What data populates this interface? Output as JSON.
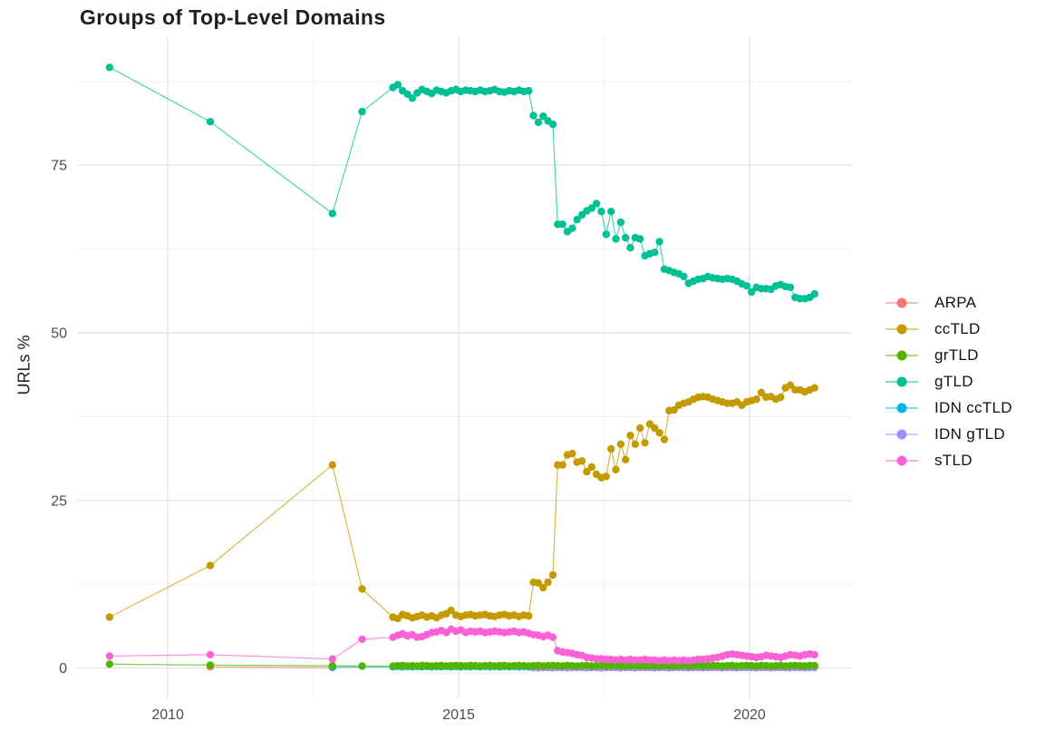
{
  "page": {
    "background": "#ffffff"
  },
  "styles": {
    "grid_major_color": "#e2e2e2",
    "grid_minor_color": "#f0f0f0",
    "axis_text_color": "#4d4d4d",
    "title_color": "#1f1f1f",
    "legend_text_color": "#111111"
  },
  "chart_data": {
    "type": "line",
    "title": "Groups of Top-Level Domains",
    "xlabel": "",
    "ylabel": "URLs %",
    "legend_position": "right",
    "grid": true,
    "xlim": [
      2008.44,
      2021.76
    ],
    "ylim": [
      -4.5,
      94.1
    ],
    "x_ticks": [
      [
        2010,
        "2010"
      ],
      [
        2015,
        "2015"
      ],
      [
        2020,
        "2020"
      ]
    ],
    "y_ticks": [
      [
        0,
        "0"
      ],
      [
        25,
        "25"
      ],
      [
        50,
        "50"
      ],
      [
        75,
        "75"
      ]
    ],
    "x_minor_gridlines": [
      2012.5,
      2017.5
    ],
    "y_minor_gridlines": [
      12.5,
      37.5,
      62.5,
      87.5
    ],
    "series": [
      {
        "name": "ARPA",
        "color": "#F8766D",
        "sparse_points": [
          [
            2010.73,
            0.2
          ],
          [
            2012.83,
            0.1
          ]
        ]
      },
      {
        "name": "ccTLD",
        "color": "#C49A00",
        "sparse_points": [
          [
            2009.0,
            7.6
          ],
          [
            2010.73,
            15.3
          ],
          [
            2012.83,
            30.3
          ],
          [
            2013.34,
            11.8
          ]
        ],
        "dense": {
          "x_start": 2013.87,
          "x_step": 0.0833,
          "values": [
            7.6,
            7.4,
            8.0,
            7.8,
            7.5,
            7.7,
            7.9,
            7.6,
            7.8,
            7.5,
            7.9,
            8.1,
            8.6,
            7.9,
            7.7,
            7.9,
            8.0,
            7.8,
            7.9,
            8.0,
            7.8,
            7.7,
            7.9,
            8.0,
            7.8,
            7.9,
            7.7,
            7.9,
            7.8,
            12.8,
            12.7,
            12.0,
            12.8,
            13.9,
            30.3,
            30.3,
            31.8,
            32.0,
            30.7,
            30.9,
            29.3,
            30.0,
            28.9,
            28.4,
            28.6,
            32.7,
            29.6,
            33.4,
            31.1,
            34.7,
            33.4,
            35.8,
            33.6,
            36.4,
            35.8,
            35.1,
            34.1,
            38.4,
            38.5,
            39.2,
            39.5,
            39.7,
            40.1,
            40.4,
            40.5,
            40.4,
            40.1,
            39.9,
            39.7,
            39.5,
            39.5,
            39.7,
            39.2,
            39.7,
            39.9,
            40.1,
            41.1,
            40.4,
            40.5,
            40.1,
            40.4,
            41.8,
            42.2,
            41.5,
            41.5,
            41.2,
            41.5,
            41.8
          ]
        }
      },
      {
        "name": "grTLD",
        "color": "#53B400",
        "sparse_points": [
          [
            2009.0,
            0.6
          ],
          [
            2010.73,
            0.45
          ],
          [
            2012.83,
            0.35
          ],
          [
            2013.34,
            0.3
          ]
        ],
        "dense": {
          "x_start": 2013.87,
          "x_step": 0.0833,
          "values": [
            0.3,
            0.35,
            0.4,
            0.3,
            0.35,
            0.3,
            0.4,
            0.35,
            0.3,
            0.35,
            0.4,
            0.3,
            0.35,
            0.4,
            0.35,
            0.3,
            0.4,
            0.35,
            0.3,
            0.35,
            0.4,
            0.3,
            0.35,
            0.4,
            0.3,
            0.35,
            0.4,
            0.35,
            0.3,
            0.35,
            0.4,
            0.3,
            0.35,
            0.4,
            0.35,
            0.3,
            0.4,
            0.35,
            0.3,
            0.35,
            0.4,
            0.3,
            0.35,
            0.4,
            0.3,
            0.35,
            0.4,
            0.35,
            0.3,
            0.35,
            0.4,
            0.3,
            0.35,
            0.4,
            0.35,
            0.3,
            0.4,
            0.35,
            0.3,
            0.35,
            0.4,
            0.3,
            0.35,
            0.4,
            0.3,
            0.35,
            0.4,
            0.35,
            0.3,
            0.35,
            0.4,
            0.3,
            0.35,
            0.4,
            0.35,
            0.3,
            0.4,
            0.35,
            0.3,
            0.35,
            0.4,
            0.3,
            0.35,
            0.4,
            0.35,
            0.3,
            0.4,
            0.35
          ]
        }
      },
      {
        "name": "gTLD",
        "color": "#00C094",
        "sparse_points": [
          [
            2009.0,
            89.6
          ],
          [
            2010.73,
            81.5
          ],
          [
            2012.83,
            67.8
          ],
          [
            2013.34,
            83.0
          ]
        ],
        "dense": {
          "x_start": 2013.87,
          "x_step": 0.0833,
          "values": [
            86.6,
            87.0,
            86.1,
            85.6,
            85.0,
            85.8,
            86.3,
            86.0,
            85.7,
            86.2,
            86.0,
            85.8,
            86.1,
            86.3,
            86.0,
            86.2,
            86.1,
            86.0,
            86.2,
            86.0,
            86.1,
            86.3,
            86.0,
            85.9,
            86.1,
            86.0,
            86.2,
            86.0,
            86.1,
            82.4,
            81.4,
            82.3,
            81.6,
            81.1,
            66.2,
            66.2,
            65.1,
            65.6,
            66.9,
            67.6,
            68.2,
            68.6,
            69.3,
            68.1,
            64.7,
            68.1,
            64.0,
            66.5,
            64.2,
            62.7,
            64.2,
            64.0,
            61.5,
            61.8,
            62.0,
            63.6,
            59.5,
            59.3,
            59.0,
            58.8,
            58.4,
            57.4,
            57.7,
            58.0,
            58.1,
            58.4,
            58.2,
            58.1,
            58.0,
            58.1,
            58.0,
            57.7,
            57.3,
            57.0,
            56.1,
            56.8,
            56.6,
            56.6,
            56.5,
            57.0,
            57.2,
            56.9,
            56.8,
            55.3,
            55.1,
            55.1,
            55.3,
            55.8
          ]
        }
      },
      {
        "name": "IDN ccTLD",
        "color": "#00B6EB",
        "sparse_points": [
          [
            2012.83,
            0.15
          ]
        ],
        "dense": {
          "x_start": 2013.87,
          "x_step": 0.0833,
          "values": [
            0.2,
            0.25,
            0.2,
            0.25,
            0.2,
            0.25,
            0.2,
            0.25,
            0.2,
            0.25,
            0.2,
            0.25,
            0.2,
            0.25,
            0.2,
            0.25,
            0.2,
            0.25,
            0.2,
            0.25,
            0.2,
            0.25,
            0.2,
            0.25,
            0.2,
            0.25,
            0.2,
            0.25,
            0.2,
            0.25,
            0.2,
            0.25,
            0.2,
            0.25,
            0.2,
            0.25,
            0.2,
            0.25,
            0.2,
            0.25,
            0.2,
            0.25,
            0.2,
            0.25,
            0.2,
            0.25,
            0.2,
            0.25,
            0.2,
            0.25,
            0.2,
            0.25,
            0.2,
            0.25,
            0.2,
            0.25,
            0.2,
            0.25,
            0.2,
            0.25,
            0.2,
            0.25,
            0.2,
            0.25,
            0.2,
            0.25,
            0.2,
            0.25,
            0.2,
            0.25,
            0.2,
            0.25,
            0.2,
            0.25,
            0.2,
            0.25,
            0.2,
            0.25,
            0.2,
            0.25,
            0.2,
            0.25,
            0.2,
            0.25,
            0.2,
            0.25,
            0.2,
            0.25
          ]
        }
      },
      {
        "name": "IDN gTLD",
        "color": "#A58AFF",
        "sparse_points": [],
        "dense": {
          "x_start": 2016.28,
          "x_step": 0.0833,
          "values": [
            0.08,
            0.05,
            0.1,
            0.08,
            0.05,
            0.08,
            0.1,
            0.05,
            0.08,
            0.1,
            0.08,
            0.05,
            0.08,
            0.1,
            0.05,
            0.08,
            0.1,
            0.08,
            0.05,
            0.08,
            0.1,
            0.05,
            0.08,
            0.1,
            0.08,
            0.05,
            0.08,
            0.1,
            0.05,
            0.08,
            0.1,
            0.08,
            0.05,
            0.08,
            0.1,
            0.05,
            0.08,
            0.1,
            0.08,
            0.05,
            0.08,
            0.1,
            0.05,
            0.08,
            0.1,
            0.08,
            0.05,
            0.08,
            0.1,
            0.05,
            0.08,
            0.1,
            0.08,
            0.05,
            0.08,
            0.1,
            0.05,
            0.08,
            0.1
          ]
        }
      },
      {
        "name": "sTLD",
        "color": "#FB61D7",
        "sparse_points": [
          [
            2009.0,
            1.8
          ],
          [
            2010.73,
            2.0
          ],
          [
            2012.83,
            1.35
          ],
          [
            2013.34,
            4.3
          ]
        ],
        "dense": {
          "x_start": 2013.87,
          "x_step": 0.0833,
          "values": [
            4.6,
            4.9,
            5.1,
            4.8,
            5.0,
            4.6,
            4.7,
            5.0,
            5.3,
            5.4,
            5.6,
            5.3,
            5.8,
            5.5,
            5.7,
            5.3,
            5.5,
            5.4,
            5.5,
            5.3,
            5.4,
            5.5,
            5.4,
            5.3,
            5.4,
            5.5,
            5.3,
            5.4,
            5.2,
            5.0,
            4.9,
            4.7,
            4.9,
            4.6,
            2.6,
            2.4,
            2.3,
            2.2,
            2.0,
            1.9,
            1.6,
            1.5,
            1.4,
            1.4,
            1.3,
            1.3,
            1.2,
            1.3,
            1.2,
            1.3,
            1.2,
            1.2,
            1.3,
            1.2,
            1.2,
            1.1,
            1.2,
            1.1,
            1.2,
            1.1,
            1.2,
            1.1,
            1.2,
            1.3,
            1.3,
            1.4,
            1.5,
            1.6,
            1.8,
            2.0,
            2.1,
            2.0,
            1.9,
            1.8,
            1.7,
            1.6,
            1.7,
            1.9,
            1.8,
            1.7,
            1.6,
            1.8,
            2.0,
            1.9,
            1.8,
            2.0,
            2.1,
            2.0
          ]
        }
      }
    ]
  }
}
